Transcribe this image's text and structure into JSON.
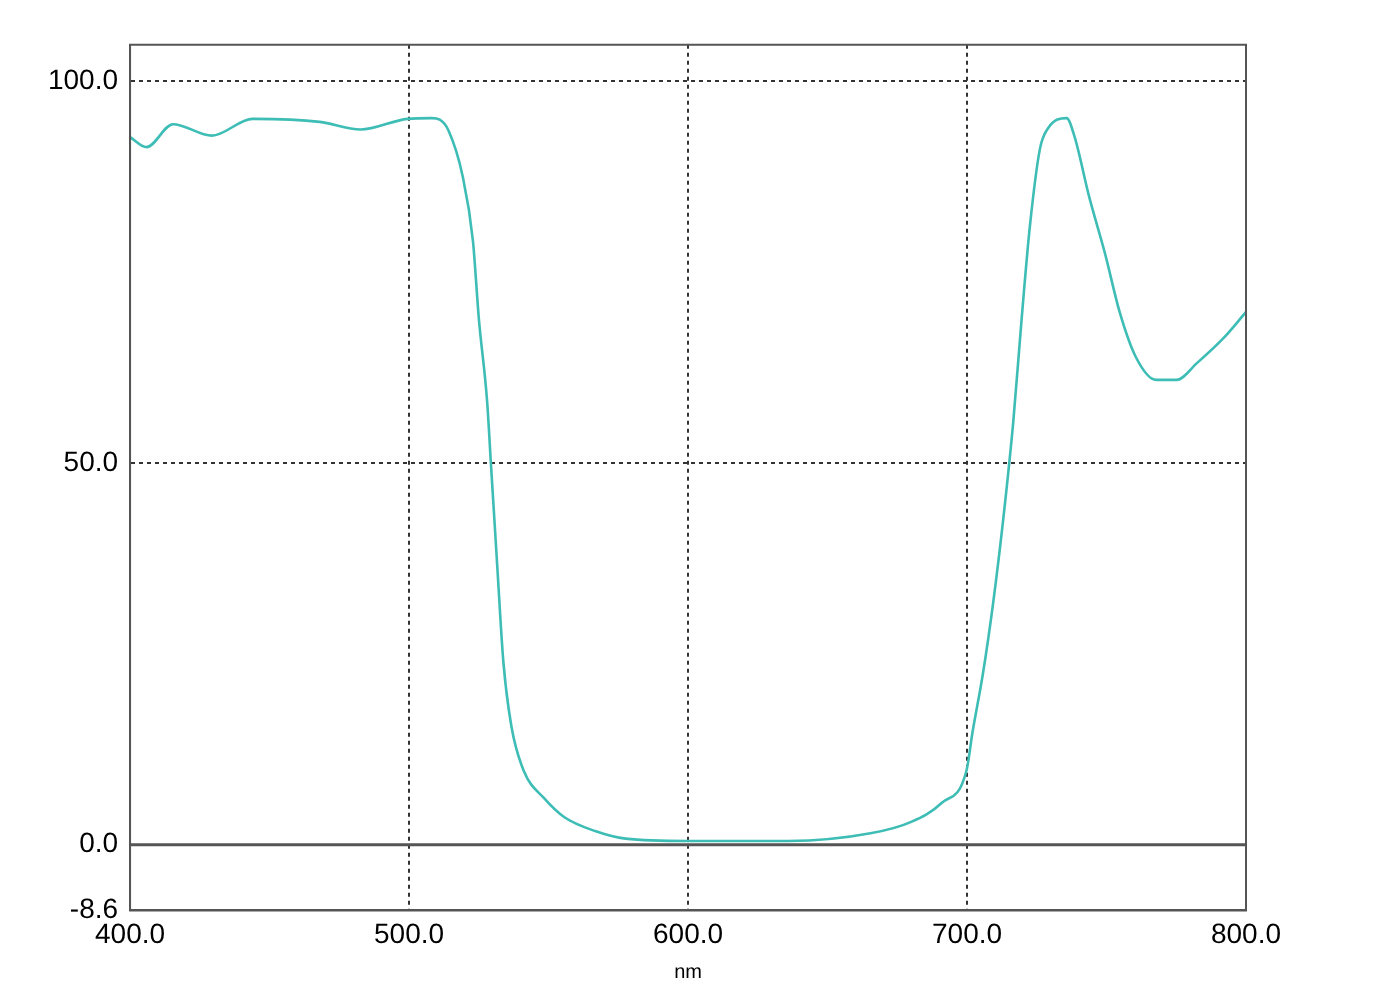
{
  "chart_data": {
    "type": "line",
    "xlabel": "nm",
    "x": [
      400,
      405.9,
      415.4,
      429.3,
      443.9,
      468,
      482.6,
      499.5,
      508.2,
      511,
      514.1,
      519.2,
      522.9,
      525,
      528,
      529.4,
      531.6,
      533.8,
      536.7,
      541.1,
      548.4,
      555.7,
      566.7,
      577.6,
      600,
      636,
      665.4,
      680,
      691,
      699.8,
      702,
      705.7,
      709.3,
      713,
      716.6,
      719.6,
      722.5,
      726.1,
      729.1,
      735.7,
      738.6,
      743.7,
      749.5,
      754.7,
      760.5,
      767.8,
      775.1,
      782.4,
      792,
      800
    ],
    "values": [
      92.7,
      91.4,
      94.4,
      92.9,
      95.1,
      94.7,
      93.7,
      95.1,
      95.2,
      95,
      93.6,
      87.6,
      79.1,
      69,
      58,
      49.6,
      36.6,
      24,
      15.5,
      9.7,
      6.1,
      3.6,
      1.8,
      0.8,
      0.5,
      0.5,
      1.5,
      3,
      5.5,
      9.7,
      14.8,
      22.4,
      31.5,
      42.7,
      55.5,
      69,
      80.9,
      91.1,
      93.9,
      95.2,
      92.7,
      85,
      77.4,
      69.8,
      63.9,
      60.9,
      60.9,
      63.1,
      66.4,
      69.8
    ],
    "color": "#3dbdb5",
    "xlim": [
      400,
      800
    ],
    "xticks": [
      {
        "value": 400,
        "label": "400.0"
      },
      {
        "value": 500,
        "label": "500.0"
      },
      {
        "value": 600,
        "label": "600.0"
      },
      {
        "value": 700,
        "label": "700.0"
      },
      {
        "value": 800,
        "label": "800.0"
      }
    ],
    "ylim": [
      -8.6,
      104.8
    ],
    "yticks": [
      {
        "value": -8.6,
        "label": "-8.6"
      },
      {
        "value": 0,
        "label": "0.0"
      },
      {
        "value": 50,
        "label": "50.0"
      },
      {
        "value": 100,
        "label": "100.0"
      }
    ],
    "grid": true,
    "ref_lines": [
      {
        "axis": "y",
        "value": 0,
        "color": "#555555",
        "line_style": "solid"
      }
    ]
  }
}
